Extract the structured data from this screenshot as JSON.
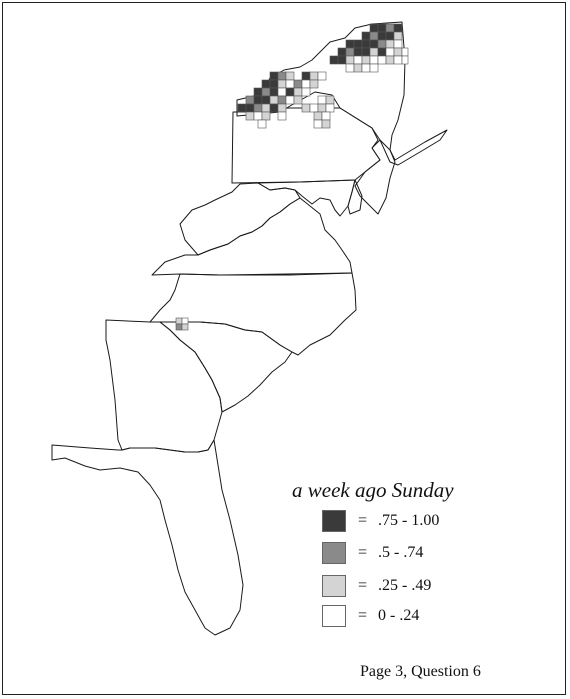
{
  "legend": {
    "title": "a week ago Sunday",
    "items": [
      {
        "symbol": "=",
        "range": ".75 - 1.00",
        "shade": "#3a3a3a"
      },
      {
        "symbol": "=",
        "range": ".5 - .74",
        "shade": "#8a8a8a"
      },
      {
        "symbol": "=",
        "range": ".25 - .49",
        "shade": "#d4d4d4"
      },
      {
        "symbol": "=",
        "range": "0 - .24",
        "shade": "#ffffff"
      }
    ]
  },
  "footer": {
    "label": "Page 3, Question 6"
  },
  "colors": {
    "outline": "#1a1a1a",
    "background": "#ffffff"
  }
}
